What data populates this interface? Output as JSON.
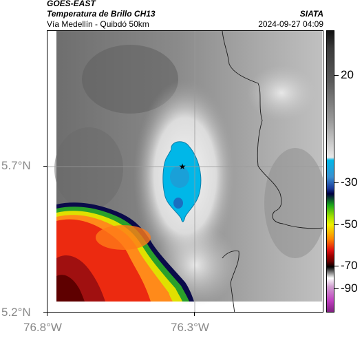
{
  "header": {
    "satellite": "GOES-EAST",
    "product": "Temperatura de Brillo CH13",
    "route": "Vía Medellín - Quibdó 50km",
    "org": "SIATA",
    "timestamp": "2024-09-27 04:09"
  },
  "map": {
    "marker_icon": "star-icon",
    "y_labels": [
      "5.7°N",
      "5.2°N"
    ],
    "x_labels": [
      "76.8°W",
      "76.3°W"
    ]
  },
  "colorbar": {
    "labels": [
      "20",
      "-30",
      "-50",
      "-70",
      "-90"
    ],
    "range": [
      -95,
      30
    ],
    "colors": {
      "warm_gray": "#5a5a5a",
      "cold_cyan": "#00b7e8",
      "blue": "#1a3a9a",
      "green": "#1aa81a",
      "yellow": "#f0f000",
      "orange": "#ff8800",
      "red": "#e01010",
      "dark_red": "#6a0000",
      "magenta": "#c040c0"
    }
  }
}
